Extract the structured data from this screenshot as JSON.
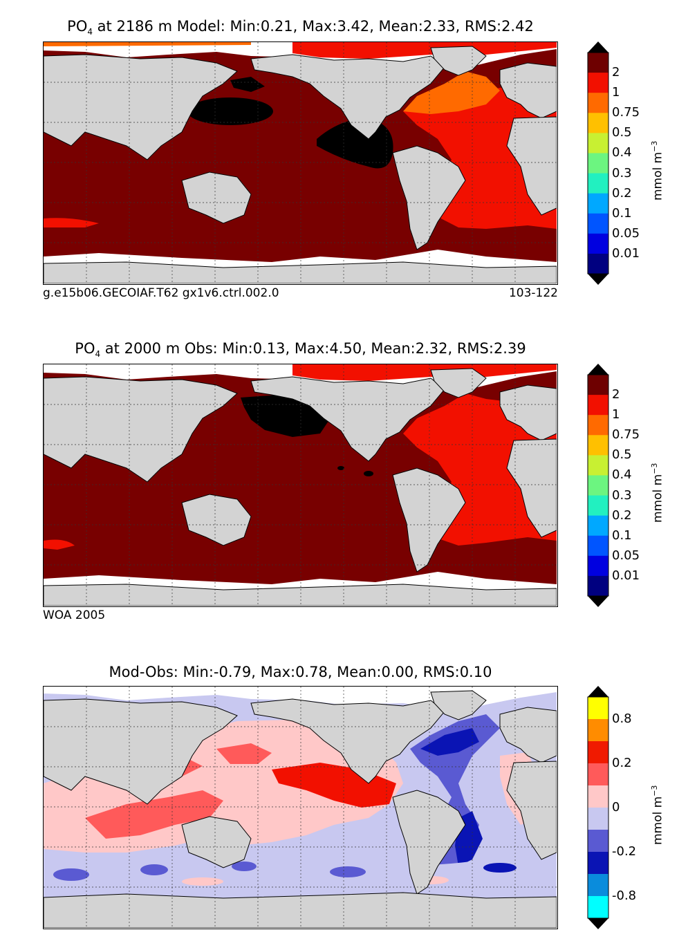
{
  "panels": [
    {
      "title_prefix": "PO",
      "title_sub": "4",
      "title_suffix": " at 2186 m Model: Min:0.21, Max:3.42, Mean:2.33, RMS:2.42",
      "footer_left": "g.e15b06.GECOIAF.T62 gx1v6.ctrl.002.0",
      "footer_right": "103-122",
      "colorbar_labels": [
        "2",
        "1",
        "0.75",
        "0.5",
        "0.4",
        "0.3",
        "0.2",
        "0.1",
        "0.05",
        "0.01"
      ],
      "colorbar_colors": [
        "#6e0000",
        "#f21000",
        "#ff6a00",
        "#ffc000",
        "#c8f032",
        "#6cf580",
        "#22f0c0",
        "#00a8ff",
        "#0055ff",
        "#0000e0",
        "#000080"
      ],
      "colorbar_arrow_top": "#000000",
      "colorbar_arrow_bottom": "#000000",
      "unit_text": "mmol m",
      "unit_sup": "−3"
    },
    {
      "title_prefix": "PO",
      "title_sub": "4",
      "title_suffix": " at 2000 m Obs: Min:0.13, Max:4.50, Mean:2.32, RMS:2.39",
      "footer_left": "WOA 2005",
      "footer_right": "",
      "colorbar_labels": [
        "2",
        "1",
        "0.75",
        "0.5",
        "0.4",
        "0.3",
        "0.2",
        "0.1",
        "0.05",
        "0.01"
      ],
      "colorbar_colors": [
        "#6e0000",
        "#f21000",
        "#ff6a00",
        "#ffc000",
        "#c8f032",
        "#6cf580",
        "#22f0c0",
        "#00a8ff",
        "#0055ff",
        "#0000e0",
        "#000080"
      ],
      "colorbar_arrow_top": "#000000",
      "colorbar_arrow_bottom": "#000000",
      "unit_text": "mmol m",
      "unit_sup": "−3"
    },
    {
      "title_prefix": "Mod-Obs: Min:-0.79, Max:0.78, Mean:0.00, RMS:0.10",
      "title_sub": "",
      "title_suffix": "",
      "footer_left": "",
      "footer_right": "",
      "colorbar_labels": [
        "0.8",
        "0.2",
        "0",
        "-0.2",
        "-0.8"
      ],
      "colorbar_colors": [
        "#ffff00",
        "#ff8c00",
        "#f01a00",
        "#ff5a5a",
        "#ffc8c8",
        "#c8c8f0",
        "#5a5ad2",
        "#0a14b4",
        "#0a8cdc",
        "#00ffff"
      ],
      "colorbar_arrow_top": "#000000",
      "colorbar_arrow_bottom": "#000000",
      "unit_text": "mmol m",
      "unit_sup": "−3"
    }
  ],
  "colors": {
    "land": "#d3d3d3",
    "no_data": "#ffffff",
    "deep_red": "#780000",
    "red": "#f21000",
    "orange": "#ff6a00",
    "black": "#000000",
    "diff_light_pink": "#ffc8c8",
    "diff_light_blue": "#c8c8f0",
    "diff_pink": "#ff5a5a",
    "diff_red": "#f21000",
    "diff_mid_blue": "#5a5ad2",
    "diff_dark_blue": "#0a14b4"
  }
}
